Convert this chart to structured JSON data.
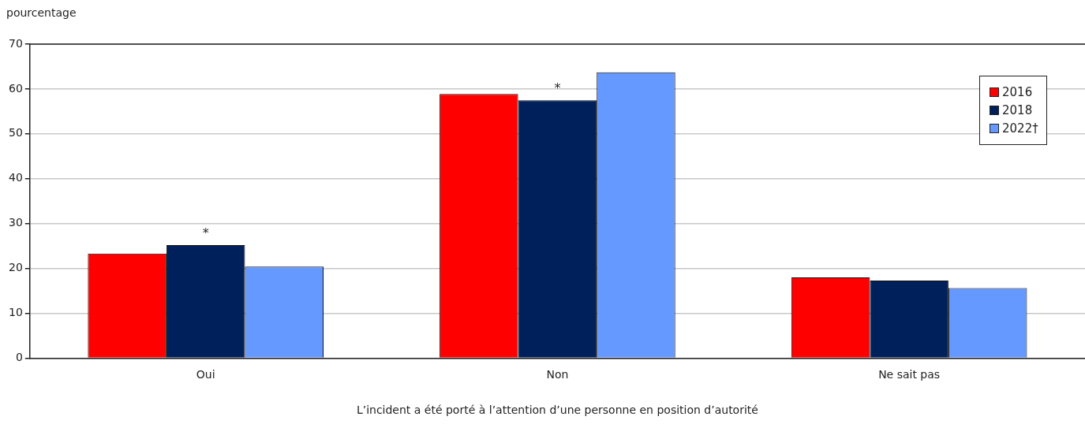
{
  "chart_data": {
    "type": "bar",
    "ylabel": "pourcentage",
    "xlabel": "L’incident a été porté à l’attention d’une personne en position d’autorité",
    "categories": [
      "Oui",
      "Non",
      "Ne sait pas"
    ],
    "series": [
      {
        "name": "2016",
        "color": "#ff0000",
        "values": [
          23.3,
          58.9,
          18.0
        ]
      },
      {
        "name": "2018",
        "color": "#00205b",
        "values": [
          25.2,
          57.5,
          17.3
        ]
      },
      {
        "name": "2022†",
        "color": "#6699ff",
        "values": [
          20.4,
          63.7,
          15.6
        ]
      }
    ],
    "annotations": [
      {
        "text": "*",
        "x": "Oui",
        "y": 25.2
      },
      {
        "text": "*",
        "x": "Non",
        "y": 57.5
      }
    ],
    "ylim": [
      0,
      70
    ],
    "yticks": [
      0,
      10,
      20,
      30,
      40,
      50,
      60,
      70
    ],
    "grid": "y",
    "legend": "top right"
  }
}
